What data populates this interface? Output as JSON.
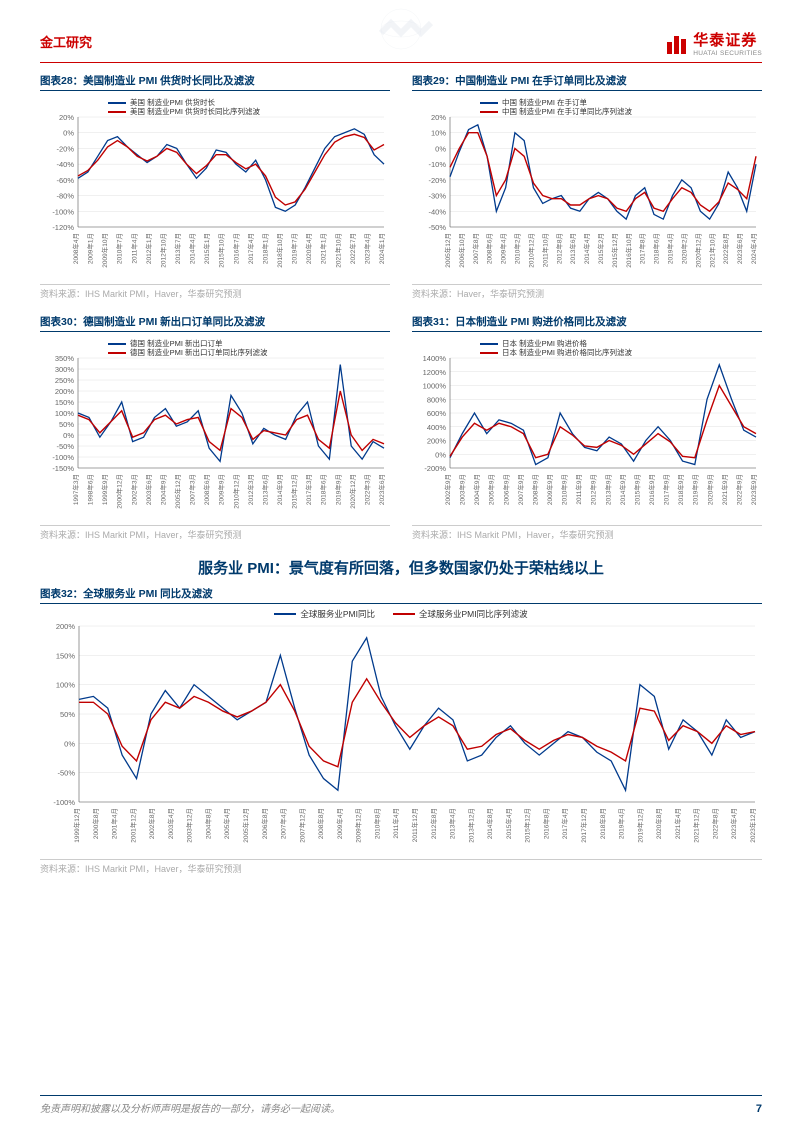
{
  "header": {
    "category": "金工研究"
  },
  "brand": {
    "cn": "华泰证券",
    "en": "HUATAI SECURITIES"
  },
  "footer": {
    "disclaimer": "免责声明和披露以及分析师声明是报告的一部分，请务必一起阅读。",
    "page": "7"
  },
  "section_heading": "服务业 PMI：景气度有所回落，但多数国家仍处于荣枯线以上",
  "colors": {
    "series_blue": "#003a8c",
    "series_red": "#c00000",
    "grid": "#e0e0e0",
    "axis": "#555555",
    "tick_label": "#666666",
    "title_blue": "#003a6c",
    "source_gray": "#aaaaaa"
  },
  "chart28": {
    "title": "图表28：美国制造业 PMI 供货时长同比及滤波",
    "legend": [
      "美国 制造业PMI 供货时长",
      "美国 制造业PMI 供货时长同比序列滤波"
    ],
    "source": "资料来源：IHS Markit PMI，Haver，华泰研究预测",
    "ylim": [
      -120,
      20
    ],
    "ytick_step": 20,
    "ylabel_suffix": "%",
    "xlabels": [
      "2008年4月",
      "2009年1月",
      "2009年10月",
      "2010年7月",
      "2011年4月",
      "2012年1月",
      "2012年10月",
      "2013年7月",
      "2014年4月",
      "2015年1月",
      "2015年10月",
      "2016年7月",
      "2017年4月",
      "2018年1月",
      "2018年10月",
      "2019年7月",
      "2020年4月",
      "2021年1月",
      "2021年10月",
      "2022年7月",
      "2023年4月",
      "2024年1月"
    ],
    "series_blue": [
      -58,
      -50,
      -30,
      -10,
      -5,
      -18,
      -28,
      -38,
      -30,
      -15,
      -20,
      -40,
      -58,
      -45,
      -22,
      -25,
      -40,
      -50,
      -35,
      -60,
      -95,
      -100,
      -92,
      -70,
      -45,
      -20,
      -5,
      0,
      5,
      -2,
      -28,
      -40
    ],
    "series_red": [
      -55,
      -48,
      -35,
      -18,
      -10,
      -18,
      -30,
      -36,
      -30,
      -20,
      -25,
      -40,
      -52,
      -42,
      -28,
      -28,
      -38,
      -46,
      -40,
      -55,
      -82,
      -92,
      -88,
      -72,
      -50,
      -28,
      -12,
      -5,
      -2,
      -6,
      -22,
      -15
    ]
  },
  "chart29": {
    "title": "图表29：中国制造业 PMI 在手订单同比及滤波",
    "legend": [
      "中国 制造业PMI 在手订单",
      "中国 制造业PMI 在手订单同比序列滤波"
    ],
    "source": "资料来源：Haver，华泰研究预测",
    "ylim": [
      -50,
      20
    ],
    "ytick_step": 10,
    "ylabel_suffix": "%",
    "xlabels": [
      "2005年12月",
      "2006年10月",
      "2007年8月",
      "2008年6月",
      "2009年4月",
      "2010年2月",
      "2010年12月",
      "2011年10月",
      "2012年8月",
      "2013年6月",
      "2014年4月",
      "2015年2月",
      "2015年12月",
      "2016年10月",
      "2017年8月",
      "2018年6月",
      "2019年4月",
      "2020年2月",
      "2020年12月",
      "2021年10月",
      "2022年8月",
      "2023年6月",
      "2024年4月"
    ],
    "series_blue": [
      -18,
      -2,
      12,
      15,
      -5,
      -40,
      -25,
      10,
      5,
      -25,
      -35,
      -32,
      -30,
      -38,
      -40,
      -32,
      -28,
      -32,
      -40,
      -45,
      -30,
      -25,
      -42,
      -45,
      -30,
      -20,
      -25,
      -40,
      -45,
      -35,
      -15,
      -25,
      -40,
      -10
    ],
    "series_red": [
      -12,
      0,
      10,
      10,
      -5,
      -30,
      -20,
      0,
      -5,
      -22,
      -30,
      -32,
      -32,
      -36,
      -36,
      -32,
      -30,
      -32,
      -38,
      -40,
      -32,
      -28,
      -38,
      -40,
      -32,
      -25,
      -28,
      -36,
      -40,
      -34,
      -22,
      -26,
      -32,
      -5
    ]
  },
  "chart30": {
    "title": "图表30：德国制造业 PMI 新出口订单同比及滤波",
    "legend": [
      "德国 制造业PMI 新出口订单",
      "德国 制造业PMI 新出口订单同比序列滤波"
    ],
    "source": "资料来源：IHS Markit PMI，Haver，华泰研究预测",
    "ylim": [
      -150,
      350
    ],
    "ytick_step": 50,
    "ylabel_suffix": "%",
    "xlabels": [
      "1997年3月",
      "1998年6月",
      "1999年9月",
      "2000年12月",
      "2002年3月",
      "2003年6月",
      "2004年9月",
      "2005年12月",
      "2007年3月",
      "2008年6月",
      "2009年9月",
      "2010年12月",
      "2012年3月",
      "2013年6月",
      "2014年9月",
      "2015年12月",
      "2017年3月",
      "2018年6月",
      "2019年9月",
      "2020年12月",
      "2022年3月",
      "2023年6月"
    ],
    "series_blue": [
      100,
      80,
      -10,
      60,
      150,
      -30,
      -10,
      80,
      120,
      40,
      60,
      110,
      -60,
      -120,
      180,
      100,
      -40,
      30,
      0,
      -20,
      90,
      150,
      -50,
      -110,
      320,
      -50,
      -110,
      -30,
      -60
    ],
    "series_red": [
      90,
      70,
      10,
      60,
      110,
      -10,
      10,
      70,
      90,
      50,
      70,
      80,
      -30,
      -70,
      120,
      80,
      -20,
      20,
      10,
      0,
      70,
      90,
      -20,
      -60,
      200,
      0,
      -70,
      -20,
      -40
    ]
  },
  "chart31": {
    "title": "图表31：日本制造业 PMI 购进价格同比及滤波",
    "legend": [
      "日本 制造业PMI 购进价格",
      "日本 制造业PMI 购进价格同比序列滤波"
    ],
    "source": "资料来源：IHS Markit PMI，Haver，华泰研究预测",
    "ylim": [
      -200,
      1400
    ],
    "ytick_step": 200,
    "ylabel_suffix": "%",
    "xlabels": [
      "2002年9月",
      "2003年9月",
      "2004年9月",
      "2005年9月",
      "2006年9月",
      "2007年9月",
      "2008年9月",
      "2009年9月",
      "2010年9月",
      "2011年9月",
      "2012年9月",
      "2013年9月",
      "2014年9月",
      "2015年9月",
      "2016年9月",
      "2017年9月",
      "2018年9月",
      "2019年9月",
      "2020年9月",
      "2021年9月",
      "2022年9月",
      "2023年9月"
    ],
    "series_blue": [
      -50,
      300,
      600,
      300,
      500,
      450,
      350,
      -150,
      -50,
      600,
      300,
      100,
      50,
      250,
      150,
      -100,
      200,
      400,
      200,
      -100,
      -150,
      800,
      1300,
      800,
      350,
      250
    ],
    "series_red": [
      -30,
      250,
      450,
      350,
      450,
      400,
      300,
      -50,
      0,
      400,
      280,
      120,
      100,
      200,
      130,
      0,
      150,
      300,
      180,
      -30,
      -50,
      500,
      1000,
      700,
      400,
      300
    ]
  },
  "chart32": {
    "title": "图表32：全球服务业 PMI 同比及滤波",
    "legend": [
      "全球服务业PMI同比",
      "全球服务业PMI同比序列滤波"
    ],
    "source": "资料来源：IHS Markit PMI，Haver，华泰研究预测",
    "ylim": [
      -100,
      200
    ],
    "ytick_step": 50,
    "ylabel_suffix": "%",
    "xlabels": [
      "1999年12月",
      "2000年8月",
      "2001年4月",
      "2001年12月",
      "2002年8月",
      "2003年4月",
      "2003年12月",
      "2004年8月",
      "2005年4月",
      "2005年12月",
      "2006年8月",
      "2007年4月",
      "2007年12月",
      "2008年8月",
      "2009年4月",
      "2009年12月",
      "2010年8月",
      "2011年4月",
      "2011年12月",
      "2012年8月",
      "2013年4月",
      "2013年12月",
      "2014年8月",
      "2015年4月",
      "2015年12月",
      "2016年8月",
      "2017年4月",
      "2017年12月",
      "2018年8月",
      "2019年4月",
      "2019年12月",
      "2020年8月",
      "2021年4月",
      "2021年12月",
      "2022年8月",
      "2023年4月",
      "2023年12月"
    ],
    "series_blue": [
      75,
      80,
      60,
      -20,
      -60,
      50,
      90,
      60,
      100,
      80,
      60,
      40,
      55,
      70,
      150,
      60,
      -20,
      -60,
      -80,
      140,
      180,
      80,
      30,
      -10,
      30,
      60,
      40,
      -30,
      -20,
      10,
      30,
      0,
      -20,
      0,
      20,
      10,
      -15,
      -30,
      -80,
      100,
      80,
      -10,
      40,
      20,
      -20,
      40,
      10,
      20
    ],
    "series_red": [
      70,
      70,
      50,
      -5,
      -30,
      40,
      70,
      60,
      80,
      70,
      55,
      45,
      55,
      70,
      100,
      55,
      -5,
      -30,
      -40,
      70,
      110,
      70,
      35,
      10,
      30,
      45,
      30,
      -10,
      -5,
      15,
      25,
      5,
      -10,
      5,
      15,
      10,
      -5,
      -15,
      -30,
      60,
      55,
      5,
      30,
      20,
      0,
      30,
      15,
      20
    ]
  }
}
